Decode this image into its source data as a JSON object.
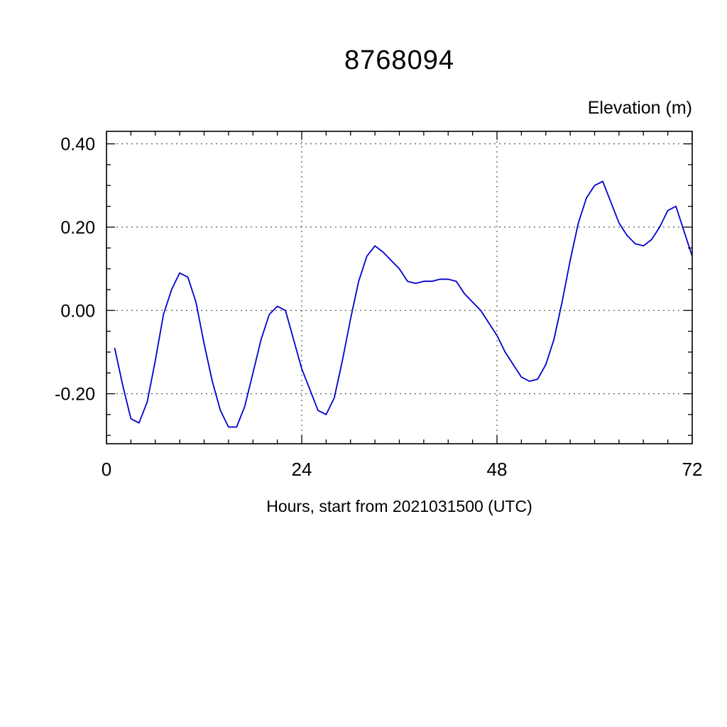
{
  "chart_data": {
    "type": "line",
    "title": "8768094",
    "ylabel": "Elevation (m)",
    "xlabel": "Hours, start from 2021031500 (UTC)",
    "xlim": [
      0,
      72
    ],
    "ylim": [
      -0.32,
      0.43
    ],
    "xticks": [
      0,
      24,
      48,
      72
    ],
    "yticks": [
      -0.2,
      0.0,
      0.2,
      0.4
    ],
    "ytick_labels": [
      "-0.20",
      "0.00",
      "0.20",
      "0.40"
    ],
    "xtick_labels": [
      "0",
      "24",
      "48",
      "72"
    ],
    "x_minor_step": 3,
    "y_minor_step": 0.05,
    "grid": "dashed",
    "legend": "none",
    "line_color": "#0000cd",
    "axis_color": "#000000",
    "series": [
      {
        "name": "elevation",
        "x": [
          1,
          2,
          3,
          4,
          5,
          6,
          7,
          8,
          9,
          10,
          11,
          12,
          13,
          14,
          15,
          16,
          17,
          18,
          19,
          20,
          21,
          22,
          23,
          24,
          25,
          26,
          27,
          28,
          29,
          30,
          31,
          32,
          33,
          34,
          35,
          36,
          37,
          38,
          39,
          40,
          41,
          42,
          43,
          44,
          45,
          46,
          47,
          48,
          49,
          50,
          51,
          52,
          53,
          54,
          55,
          56,
          57,
          58,
          59,
          60,
          61,
          62,
          63,
          64,
          65,
          66,
          67,
          68,
          69,
          70,
          71,
          72
        ],
        "y": [
          -0.09,
          -0.18,
          -0.26,
          -0.27,
          -0.22,
          -0.12,
          -0.01,
          0.05,
          0.09,
          0.08,
          0.02,
          -0.08,
          -0.17,
          -0.24,
          -0.28,
          -0.28,
          -0.23,
          -0.15,
          -0.07,
          -0.01,
          0.01,
          0.0,
          -0.07,
          -0.14,
          -0.19,
          -0.24,
          -0.25,
          -0.21,
          -0.12,
          -0.02,
          0.07,
          0.13,
          0.155,
          0.14,
          0.12,
          0.1,
          0.07,
          0.065,
          0.07,
          0.07,
          0.075,
          0.075,
          0.07,
          0.04,
          0.02,
          0.0,
          -0.03,
          -0.06,
          -0.1,
          -0.13,
          -0.16,
          -0.17,
          -0.165,
          -0.13,
          -0.07,
          0.02,
          0.12,
          0.21,
          0.27,
          0.3,
          0.31,
          0.26,
          0.21,
          0.18,
          0.16,
          0.155,
          0.17,
          0.2,
          0.24,
          0.25,
          0.19,
          0.13
        ]
      }
    ]
  }
}
